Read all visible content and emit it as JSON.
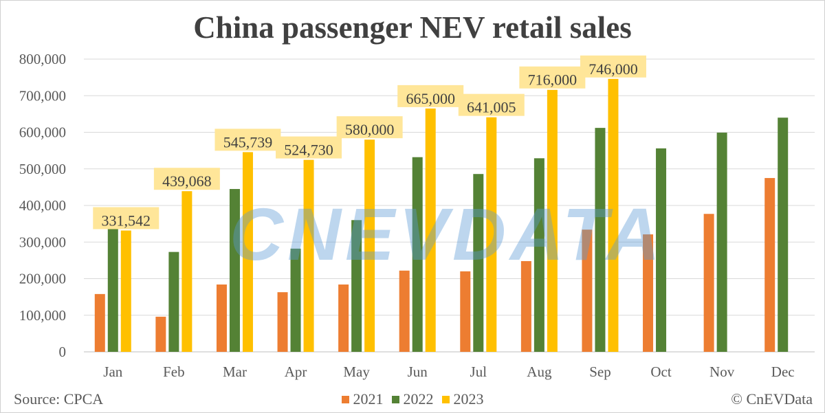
{
  "chart_data": {
    "type": "bar",
    "title": "China passenger NEV retail sales",
    "xlabel": "",
    "ylabel": "",
    "ylim": [
      0,
      800000
    ],
    "yticks": [
      "0",
      "100,000",
      "200,000",
      "300,000",
      "400,000",
      "500,000",
      "600,000",
      "700,000",
      "800,000"
    ],
    "grid": true,
    "legend_position": "bottom",
    "categories": [
      "Jan",
      "Feb",
      "Mar",
      "Apr",
      "May",
      "Jun",
      "Jul",
      "Aug",
      "Sep",
      "Oct",
      "Nov",
      "Dec"
    ],
    "series": [
      {
        "name": "2021",
        "color": "#ED7D31",
        "values": [
          158000,
          96000,
          184000,
          163000,
          184000,
          222000,
          220000,
          248000,
          334000,
          321000,
          377000,
          475000
        ]
      },
      {
        "name": "2022",
        "color": "#548235",
        "values": [
          347000,
          273000,
          445000,
          282000,
          360000,
          532000,
          486000,
          529000,
          612000,
          556000,
          599000,
          640000
        ]
      },
      {
        "name": "2023",
        "color": "#FFC000",
        "values": [
          331542,
          439068,
          545739,
          524730,
          580000,
          665000,
          641005,
          716000,
          746000,
          null,
          null,
          null
        ]
      }
    ],
    "data_labels": [
      "331,542",
      "439,068",
      "545,739",
      "524,730",
      "580,000",
      "665,000",
      "641,005",
      "716,000",
      "746,000"
    ],
    "data_label_color": "#FFE699"
  },
  "footer": {
    "source": "Source: CPCA",
    "credit": "© CnEVData"
  },
  "watermark": "CNEVDATA"
}
